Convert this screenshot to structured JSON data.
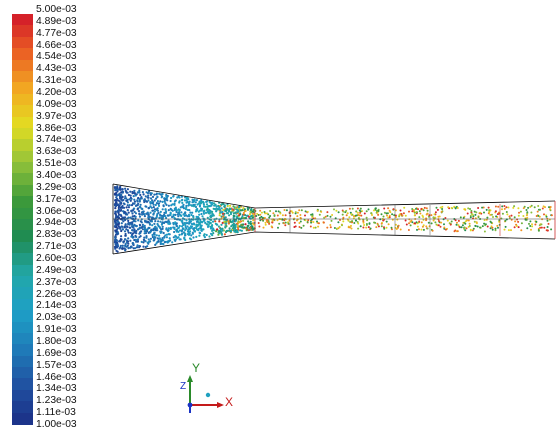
{
  "colormap": {
    "tick_labels": [
      "5.00e-03",
      "4.89e-03",
      "4.77e-03",
      "4.66e-03",
      "4.54e-03",
      "4.43e-03",
      "4.31e-03",
      "4.20e-03",
      "4.09e-03",
      "3.97e-03",
      "3.86e-03",
      "3.74e-03",
      "3.63e-03",
      "3.51e-03",
      "3.40e-03",
      "3.29e-03",
      "3.17e-03",
      "3.06e-03",
      "2.94e-03",
      "2.83e-03",
      "2.71e-03",
      "2.60e-03",
      "2.49e-03",
      "2.37e-03",
      "2.26e-03",
      "2.14e-03",
      "2.03e-03",
      "1.91e-03",
      "1.80e-03",
      "1.69e-03",
      "1.57e-03",
      "1.46e-03",
      "1.34e-03",
      "1.23e-03",
      "1.11e-03",
      "1.00e-03"
    ],
    "min": 0.001,
    "max": 0.005,
    "bands": 36,
    "colors": [
      "#1b2f86",
      "#2050a0",
      "#1f7bb8",
      "#1e9fc6",
      "#22a7a9",
      "#1f8b52",
      "#3c9a3a",
      "#92c23a",
      "#e3dd22",
      "#f2a722",
      "#ea5e24",
      "#d1162a"
    ]
  },
  "axes_triad": {
    "x_label": "X",
    "y_label": "Y",
    "z_label": "Z"
  },
  "colors": {
    "geometry_outline": "#000000",
    "background": "#ffffff"
  }
}
